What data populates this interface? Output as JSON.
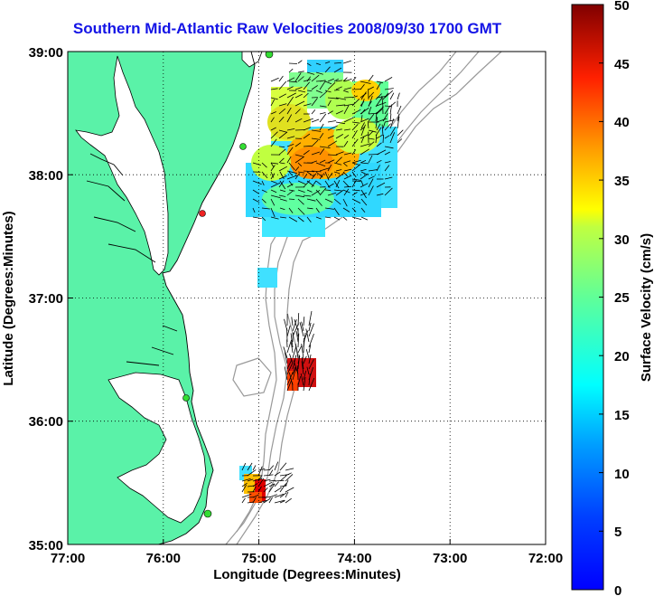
{
  "title": "Southern Mid-Atlantic Raw Velocities 2008/09/30 1700 GMT",
  "axes": {
    "xlabel": "Longitude (Degrees:Minutes)",
    "ylabel": "Latitude (Degrees:Minutes)",
    "x_ticks": [
      "77:00",
      "76:00",
      "75:00",
      "74:00",
      "73:00",
      "72:00"
    ],
    "y_ticks": [
      "39:00",
      "38:00",
      "37:00",
      "36:00",
      "35:00"
    ],
    "lon_range": [
      -77,
      -72
    ],
    "lat_range": [
      35,
      39
    ],
    "grid": "dotted"
  },
  "colorbar": {
    "label": "Surface Velocity (cm/s)",
    "ticks": [
      "50",
      "45",
      "40",
      "35",
      "30",
      "25",
      "20",
      "15",
      "10",
      "5",
      "0"
    ],
    "range": [
      0,
      50
    ],
    "colormap": "jet"
  },
  "colors": {
    "land": "#5af2a8",
    "title": "#1414e6",
    "station": "#33dd33",
    "station_alert": "#ee2222"
  },
  "velocity_patches": [
    {
      "name": "north-region",
      "lon": [
        -75.1,
        -73.6
      ],
      "lat": [
        37.5,
        38.95
      ],
      "speed_range": [
        5,
        35
      ]
    },
    {
      "name": "central-patch",
      "lon": [
        -74.45,
        -74.3
      ],
      "lat": [
        36.2,
        36.5
      ],
      "speed_range": [
        40,
        50
      ]
    },
    {
      "name": "south-patch",
      "lon": [
        -75.2,
        -74.9
      ],
      "lat": [
        35.3,
        35.65
      ],
      "speed_range": [
        10,
        45
      ]
    }
  ]
}
